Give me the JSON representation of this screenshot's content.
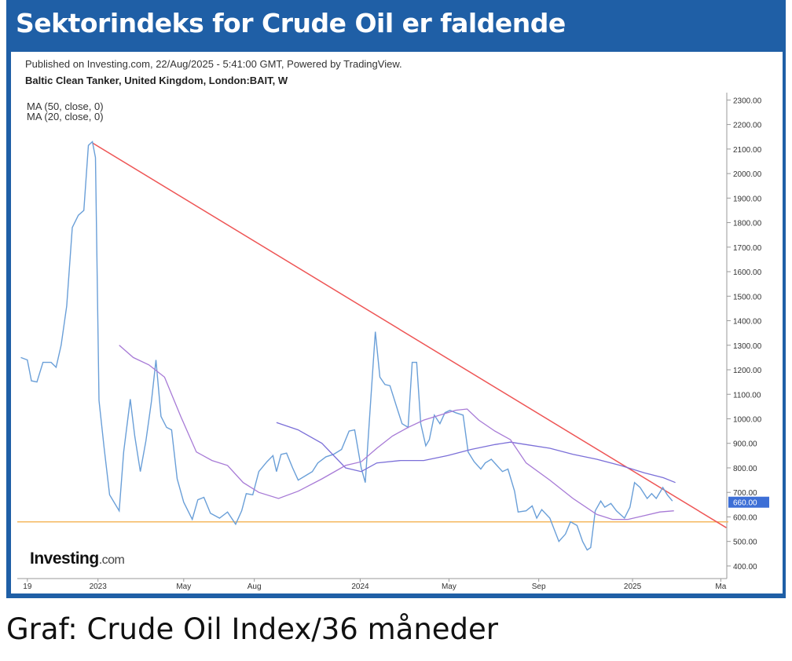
{
  "header": {
    "title": "Sektorindeks for Crude Oil er faldende"
  },
  "caption": "Graf: Crude Oil Index/36 måneder",
  "chart_data": {
    "type": "line",
    "published": "Published on Investing.com, 22/Aug/2025 - 5:41:00 GMT, Powered by TradingView.",
    "logo": "Investing",
    "logo_suffix": ".com",
    "xlim": [
      -16,
      125
    ],
    "xticks": [
      {
        "value": -14,
        "label": "19"
      },
      {
        "value": 0,
        "label": "2023"
      },
      {
        "value": 17,
        "label": "May"
      },
      {
        "value": 31,
        "label": "Aug"
      },
      {
        "value": 52,
        "label": "2024"
      },
      {
        "value": 69.6,
        "label": "May"
      },
      {
        "value": 87.4,
        "label": "Sep"
      },
      {
        "value": 106,
        "label": "2025"
      },
      {
        "value": 123.5,
        "label": "Ma"
      }
    ],
    "ylim": [
      355,
      2330
    ],
    "yticks": [
      {
        "value": 400,
        "label": "400.00"
      },
      {
        "value": 500,
        "label": "500.00"
      },
      {
        "value": 600,
        "label": "600.00"
      },
      {
        "value": 700,
        "label": "700.00"
      },
      {
        "value": 800,
        "label": "800.00"
      },
      {
        "value": 900,
        "label": "900.00"
      },
      {
        "value": 1000,
        "label": "1000.00"
      },
      {
        "value": 1100,
        "label": "1100.00"
      },
      {
        "value": 1200,
        "label": "1200.00"
      },
      {
        "value": 1300,
        "label": "1300.00"
      },
      {
        "value": 1400,
        "label": "1400.00"
      },
      {
        "value": 1500,
        "label": "1500.00"
      },
      {
        "value": 1600,
        "label": "1600.00"
      },
      {
        "value": 1700,
        "label": "1700.00"
      },
      {
        "value": 1800,
        "label": "1800.00"
      },
      {
        "value": 1900,
        "label": "1900.00"
      },
      {
        "value": 2000,
        "label": "2000.00"
      },
      {
        "value": 2100,
        "label": "2100.00"
      },
      {
        "value": 2200,
        "label": "2200.00"
      },
      {
        "value": 2300,
        "label": "2300.00"
      }
    ],
    "last_value": {
      "value": 660,
      "label": "660.00"
    },
    "series": [
      {
        "name": "Baltic Clean Tanker, United Kingdom, London:BAIT, W",
        "color": "#6a9fd8",
        "x": [
          -15.3,
          -14.0,
          -13.2,
          -12.1,
          -10.9,
          -9.3,
          -8.3,
          -7.3,
          -6.2,
          -5.1,
          -3.9,
          -2.8,
          -1.9,
          -1.1,
          -0.5,
          0.2,
          1.2,
          2.3,
          4.2,
          5.1,
          6.4,
          7.3,
          8.4,
          9.5,
          10.6,
          11.5,
          12.5,
          13.6,
          14.6,
          15.7,
          17.0,
          18.7,
          19.8,
          21.0,
          22.3,
          24.1,
          25.7,
          27.3,
          28.5,
          29.4,
          30.7,
          31.9,
          33.5,
          34.7,
          35.4,
          36.3,
          37.4,
          38.6,
          39.7,
          41.3,
          42.5,
          43.6,
          45.2,
          46.7,
          48.3,
          49.8,
          50.9,
          52.2,
          53.0,
          54.0,
          55.0,
          55.9,
          56.9,
          57.9,
          59.2,
          60.3,
          61.5,
          62.3,
          63.2,
          64.0,
          65.0,
          65.7,
          66.7,
          67.8,
          68.8,
          69.8,
          70.9,
          72.4,
          73.4,
          74.6,
          75.9,
          76.8,
          78.0,
          79.1,
          80.2,
          81.3,
          82.6,
          83.3,
          84.9,
          86.1,
          87.0,
          88.0,
          89.6,
          91.4,
          92.7,
          93.7,
          95.0,
          96.1,
          97.0,
          97.7,
          98.6,
          99.7,
          100.5,
          101.7,
          102.8,
          104.4,
          105.5,
          106.4,
          107.5,
          108.9,
          109.8,
          110.7,
          112.0,
          112.9,
          113.9
        ],
        "values": [
          1250,
          1240,
          1155,
          1150,
          1230,
          1230,
          1210,
          1300,
          1460,
          1780,
          1830,
          1850,
          2115,
          2130,
          2065,
          1075,
          885,
          690,
          625,
          865,
          1080,
          930,
          785,
          910,
          1070,
          1240,
          1010,
          965,
          955,
          755,
          660,
          590,
          670,
          680,
          615,
          595,
          620,
          570,
          625,
          695,
          690,
          785,
          825,
          850,
          785,
          855,
          860,
          800,
          750,
          770,
          785,
          820,
          845,
          855,
          875,
          950,
          955,
          800,
          740,
          1050,
          1355,
          1170,
          1140,
          1135,
          1050,
          980,
          965,
          1230,
          1230,
          980,
          890,
          915,
          1015,
          980,
          1025,
          1035,
          1025,
          1015,
          865,
          825,
          795,
          820,
          835,
          810,
          785,
          795,
          705,
          620,
          625,
          645,
          595,
          630,
          595,
          500,
          530,
          580,
          565,
          500,
          465,
          475,
          625,
          665,
          640,
          655,
          625,
          595,
          640,
          740,
          720,
          675,
          695,
          675,
          720,
          690,
          665
        ]
      },
      {
        "name": "MA (50, close, 0)",
        "color": "#7b6fd8",
        "x": [
          35.4,
          39.7,
          44.4,
          49.1,
          52.2,
          55.3,
          60.0,
          64.6,
          69.3,
          74.0,
          78.7,
          81.8,
          84.9,
          89.6,
          94.2,
          98.9,
          103.6,
          108.3,
          112.1,
          114.5
        ],
        "values": [
          985,
          955,
          900,
          800,
          785,
          820,
          830,
          830,
          850,
          875,
          895,
          905,
          895,
          880,
          855,
          835,
          810,
          780,
          760,
          740
        ]
      },
      {
        "name": "MA (20, close, 0)",
        "color": "#a77ad6",
        "x": [
          4.2,
          7.0,
          10.1,
          13.2,
          16.4,
          19.5,
          22.6,
          25.7,
          28.8,
          31.9,
          35.8,
          39.7,
          44.4,
          49.1,
          52.2,
          55.3,
          58.4,
          61.5,
          64.6,
          67.8,
          70.9,
          73.2,
          75.5,
          78.7,
          81.8,
          84.9,
          89.6,
          94.2,
          98.9,
          102.0,
          105.1,
          108.3,
          111.4,
          114.2
        ],
        "values": [
          1300,
          1250,
          1220,
          1170,
          1010,
          865,
          830,
          810,
          740,
          700,
          675,
          705,
          755,
          810,
          825,
          880,
          930,
          965,
          995,
          1015,
          1035,
          1040,
          995,
          950,
          915,
          820,
          750,
          675,
          610,
          590,
          590,
          605,
          620,
          625
        ]
      }
    ],
    "trendline": {
      "color": "#ee5555",
      "x": [
        -1.1,
        124.6
      ],
      "values": [
        2125,
        556
      ]
    },
    "support": {
      "color": "#f5b860",
      "value": 580
    }
  }
}
